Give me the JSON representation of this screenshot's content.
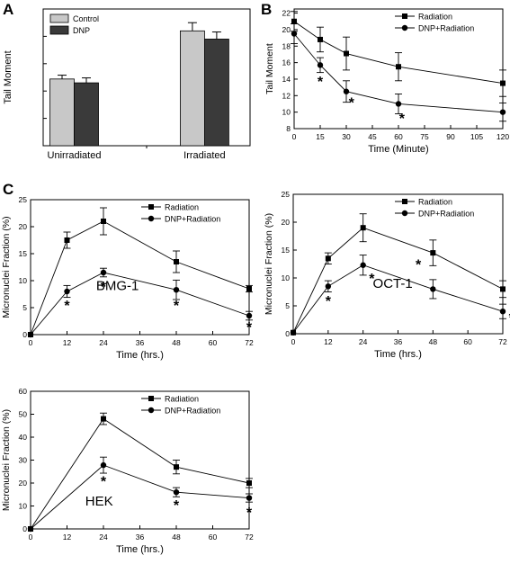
{
  "panel_labels": {
    "a": "A",
    "b": "B",
    "c": "C"
  },
  "chart_data": [
    {
      "id": "A",
      "type": "bar",
      "ylabel": "Tail Moment",
      "categories": [
        "Unirradiated",
        "Irradiated"
      ],
      "series": [
        {
          "name": "Control",
          "color": "#c8c8c8",
          "values": [
            12.2,
            21.0
          ],
          "errors": [
            0.7,
            1.5
          ]
        },
        {
          "name": "DNP",
          "color": "#3a3a3a",
          "values": [
            11.5,
            19.5
          ],
          "errors": [
            0.9,
            1.3
          ]
        }
      ],
      "ylim": [
        0,
        25
      ],
      "legend": "top-left"
    },
    {
      "id": "B",
      "type": "line",
      "xlabel": "Time (Minute)",
      "ylabel": "Tail Moment",
      "xlim": [
        0,
        120
      ],
      "ylim": [
        8,
        22.5
      ],
      "xticks": [
        "0",
        "15",
        "30",
        "45",
        "60",
        "75",
        "90",
        "105",
        "120"
      ],
      "yticks": [
        "8",
        "10",
        "12",
        "14",
        "16",
        "18",
        "20",
        "22"
      ],
      "x": [
        0,
        15,
        30,
        60,
        120
      ],
      "series": [
        {
          "name": "Radiation",
          "marker": "square",
          "values": [
            21.0,
            18.8,
            17.1,
            15.5,
            13.5
          ],
          "errors": [
            1.2,
            1.5,
            2.0,
            1.7,
            1.6
          ]
        },
        {
          "name": "DNP+Radiation",
          "marker": "circle",
          "values": [
            19.5,
            15.7,
            12.5,
            11.0,
            10.0
          ],
          "errors": [
            1.2,
            0.9,
            1.3,
            1.2,
            1.1
          ]
        }
      ],
      "annotations": [
        "*",
        "*",
        "*"
      ],
      "legend": "top-right"
    },
    {
      "id": "BMG-1",
      "type": "line",
      "inset_label": "BMG-1",
      "xlabel": "Time (hrs.)",
      "ylabel": "Micronuclei Fraction (%)",
      "xlim": [
        0,
        72
      ],
      "ylim": [
        0,
        25
      ],
      "xticks": [
        "0",
        "12",
        "24",
        "36",
        "48",
        "60",
        "72"
      ],
      "yticks": [
        "0",
        "5",
        "10",
        "15",
        "20",
        "25"
      ],
      "x": [
        0,
        12,
        24,
        48,
        72
      ],
      "series": [
        {
          "name": "Radiation",
          "marker": "square",
          "values": [
            0,
            17.5,
            21.0,
            13.5,
            8.5
          ],
          "errors": [
            0,
            1.5,
            2.5,
            2.0,
            0.6
          ]
        },
        {
          "name": "DNP+Radiation",
          "marker": "circle",
          "values": [
            0,
            8.0,
            11.5,
            8.3,
            3.5
          ],
          "errors": [
            0,
            1.1,
            0.8,
            1.8,
            0.8
          ]
        }
      ],
      "annotations": [
        "*",
        "*",
        "*",
        "*"
      ],
      "legend": "top-right"
    },
    {
      "id": "OCT-1",
      "type": "line",
      "inset_label": "OCT-1",
      "xlabel": "Time (hrs.)",
      "ylabel": "Micronuclei Fraction (%)",
      "xlim": [
        0,
        72
      ],
      "ylim": [
        0,
        25
      ],
      "xticks": [
        "0",
        "12",
        "24",
        "36",
        "48",
        "60",
        "72"
      ],
      "yticks": [
        "0",
        "5",
        "10",
        "15",
        "20",
        "25"
      ],
      "x": [
        0,
        12,
        24,
        48,
        72
      ],
      "series": [
        {
          "name": "Radiation",
          "marker": "square",
          "values": [
            0.2,
            13.5,
            19.0,
            14.5,
            8.0
          ],
          "errors": [
            0,
            1.0,
            2.5,
            2.3,
            1.5
          ]
        },
        {
          "name": "DNP+Radiation",
          "marker": "circle",
          "values": [
            0.2,
            8.5,
            12.3,
            8.0,
            4.0
          ],
          "errors": [
            0,
            1.0,
            1.8,
            1.7,
            1.3
          ]
        }
      ],
      "annotations": [
        "*",
        "*",
        "*",
        "*"
      ],
      "legend": "top-right"
    },
    {
      "id": "HEK",
      "type": "line",
      "inset_label": "HEK",
      "xlabel": "Time (hrs.)",
      "ylabel": "Micronuclei Fraction (%)",
      "xlim": [
        0,
        72
      ],
      "ylim": [
        0,
        60
      ],
      "xticks": [
        "0",
        "12",
        "24",
        "36",
        "48",
        "60",
        "72"
      ],
      "yticks": [
        "0",
        "10",
        "20",
        "30",
        "40",
        "50",
        "60"
      ],
      "x": [
        0,
        24,
        48,
        72
      ],
      "series": [
        {
          "name": "Radiation",
          "marker": "square",
          "values": [
            0,
            48.0,
            27.0,
            20.0
          ],
          "errors": [
            0,
            2.5,
            3.0,
            2.0
          ]
        },
        {
          "name": "DNP+Radiation",
          "marker": "circle",
          "values": [
            0,
            27.8,
            16.0,
            13.5
          ],
          "errors": [
            0,
            3.5,
            2.0,
            1.8
          ]
        }
      ],
      "annotations": [
        "*",
        "*",
        "*"
      ],
      "legend": "top-right"
    }
  ]
}
